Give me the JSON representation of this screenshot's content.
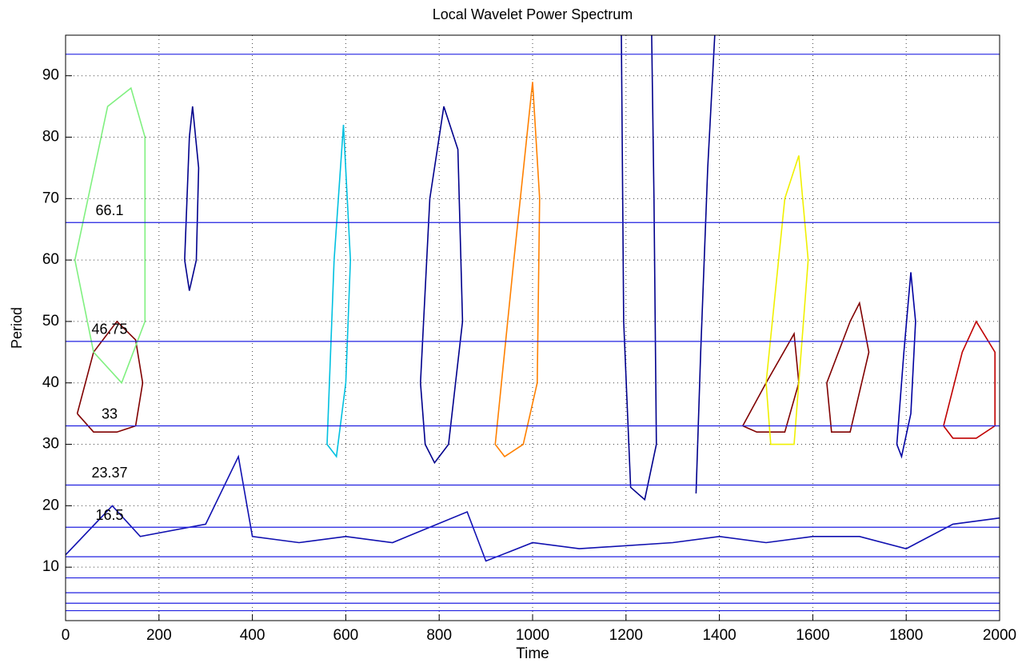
{
  "chart_data": {
    "type": "contour",
    "title": "Local Wavelet Power Spectrum",
    "x_label": "Time",
    "y_label": "Period",
    "xlim": [
      0,
      2000
    ],
    "ylim": [
      1.3,
      96.6
    ],
    "xticks": [
      0,
      200,
      400,
      600,
      800,
      1000,
      1200,
      1400,
      1600,
      1800,
      2000
    ],
    "yticks": [
      10,
      20,
      30,
      40,
      50,
      60,
      70,
      80,
      90
    ],
    "grid": true,
    "levels": [
      93.5,
      66.1,
      46.75,
      33,
      23.37,
      16.5,
      11.7,
      8.26,
      5.84,
      4.13,
      2.92
    ],
    "level_labeled": [
      false,
      true,
      true,
      true,
      true,
      true,
      false,
      false,
      false,
      false,
      false
    ],
    "level_color": "#2020e0",
    "contours": [
      {
        "color": "#800000",
        "x": [
          25,
          60,
          110,
          150,
          165,
          150,
          110,
          60,
          25
        ],
        "y": [
          35,
          45,
          50,
          47,
          40,
          33,
          32,
          32,
          35
        ]
      },
      {
        "color": "#00008c",
        "x": [
          255,
          265,
          272,
          285,
          280,
          265,
          255
        ],
        "y": [
          60,
          80,
          85,
          75,
          60,
          55,
          60
        ]
      },
      {
        "color": "#00008c",
        "x": [
          760,
          780,
          810,
          840,
          850,
          820,
          790,
          770,
          760
        ],
        "y": [
          40,
          70,
          85,
          78,
          50,
          30,
          27,
          30,
          40
        ]
      },
      {
        "color": "#00008c",
        "x": [
          1190,
          1195,
          1210,
          1240,
          1265,
          1260,
          1255
        ],
        "y": [
          96.6,
          50,
          23,
          21,
          30,
          70,
          96.6
        ]
      },
      {
        "color": "#00008c",
        "x": [
          1350,
          1360,
          1375,
          1390
        ],
        "y": [
          22,
          45,
          75,
          96.6
        ]
      },
      {
        "color": "#ff8000",
        "x": [
          920,
          960,
          1000,
          1015,
          1010,
          980,
          940,
          920
        ],
        "y": [
          30,
          60,
          89,
          70,
          40,
          30,
          28,
          30
        ]
      },
      {
        "color": "#1010b0",
        "x": [
          0,
          100,
          160,
          300,
          370,
          400,
          500,
          600,
          700,
          860,
          900,
          1000,
          1100,
          1300,
          1400,
          1500,
          1600,
          1700,
          1800,
          1900,
          2000
        ],
        "y": [
          12,
          20,
          15,
          17,
          28,
          15,
          14,
          15,
          14,
          19,
          11,
          14,
          13,
          14,
          15,
          14,
          15,
          15,
          13,
          17,
          18
        ]
      },
      {
        "color": "#800000",
        "x": [
          1450,
          1500,
          1560,
          1570,
          1540,
          1480,
          1450
        ],
        "y": [
          33,
          40,
          48,
          40,
          32,
          32,
          33
        ]
      },
      {
        "color": "#800000",
        "x": [
          1630,
          1680,
          1700,
          1720,
          1680,
          1640,
          1630
        ],
        "y": [
          40,
          50,
          53,
          45,
          32,
          32,
          40
        ]
      },
      {
        "color": "#00c0e0",
        "x": [
          560,
          575,
          595,
          610,
          600,
          580,
          560
        ],
        "y": [
          30,
          60,
          82,
          60,
          40,
          28,
          30
        ]
      },
      {
        "color": "#f0f000",
        "x": [
          1500,
          1540,
          1570,
          1590,
          1560,
          1510,
          1500
        ],
        "y": [
          40,
          70,
          77,
          60,
          30,
          30,
          40
        ]
      },
      {
        "color": "#c00000",
        "x": [
          1880,
          1920,
          1950,
          1990,
          1990,
          1950,
          1900,
          1880
        ],
        "y": [
          33,
          45,
          50,
          45,
          33,
          31,
          31,
          33
        ]
      },
      {
        "color": "#80f080",
        "x": [
          20,
          90,
          140,
          170,
          170,
          120,
          60,
          20
        ],
        "y": [
          60,
          85,
          88,
          80,
          50,
          40,
          45,
          60
        ]
      },
      {
        "color": "#0000a0",
        "x": [
          1780,
          1795,
          1810,
          1820,
          1810,
          1790,
          1780
        ],
        "y": [
          30,
          45,
          58,
          50,
          35,
          28,
          30
        ]
      }
    ]
  }
}
